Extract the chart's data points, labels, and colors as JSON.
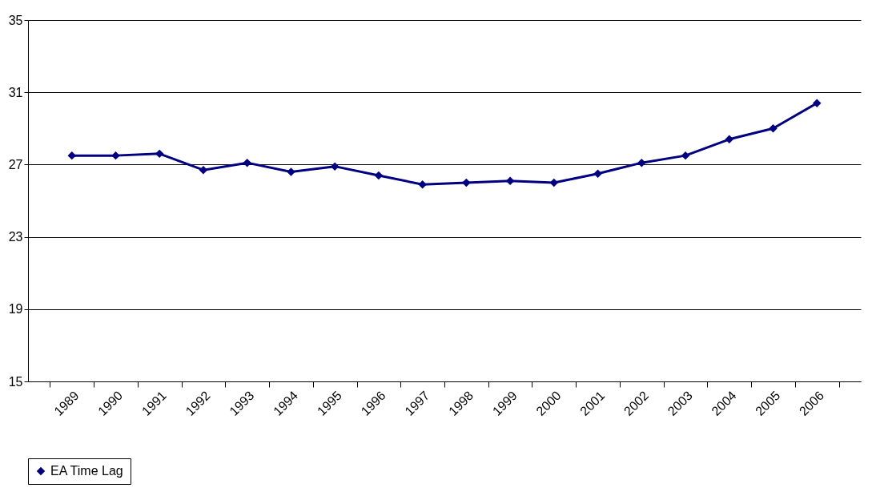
{
  "chart_data": {
    "type": "line",
    "categories": [
      "1989",
      "1990",
      "1991",
      "1992",
      "1993",
      "1994",
      "1995",
      "1996",
      "1997",
      "1998",
      "1999",
      "2000",
      "2001",
      "2002",
      "2003",
      "2004",
      "2005",
      "2006"
    ],
    "series": [
      {
        "name": "EA Time Lag",
        "color": "#000080",
        "values": [
          27.5,
          27.5,
          27.6,
          26.7,
          27.1,
          26.6,
          26.9,
          26.4,
          25.9,
          26.0,
          26.1,
          26.0,
          26.5,
          27.1,
          27.5,
          28.4,
          29.0,
          30.4
        ]
      }
    ],
    "ylim": [
      15,
      35
    ],
    "yticks": [
      15,
      19,
      23,
      27,
      31,
      35
    ],
    "grid": "y",
    "legend": "bottom",
    "marker": "diamond",
    "line_style": "solid"
  }
}
